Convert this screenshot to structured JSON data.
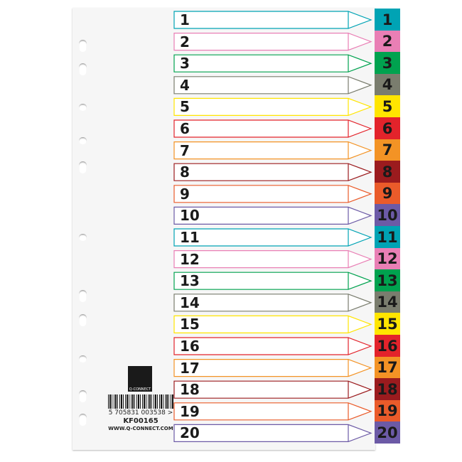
{
  "rows": [
    {
      "n": "1",
      "c": "#00a3b4"
    },
    {
      "n": "2",
      "c": "#e97fb5"
    },
    {
      "n": "3",
      "c": "#00a24f"
    },
    {
      "n": "4",
      "c": "#7a7d6e"
    },
    {
      "n": "5",
      "c": "#ffe500"
    },
    {
      "n": "6",
      "c": "#e3232b"
    },
    {
      "n": "7",
      "c": "#f39325"
    },
    {
      "n": "8",
      "c": "#9b1b1e"
    },
    {
      "n": "9",
      "c": "#ea5b2a"
    },
    {
      "n": "10",
      "c": "#6c5aa6"
    },
    {
      "n": "11",
      "c": "#00a3b4"
    },
    {
      "n": "12",
      "c": "#e97fb5"
    },
    {
      "n": "13",
      "c": "#00a24f"
    },
    {
      "n": "14",
      "c": "#7a7d6e"
    },
    {
      "n": "15",
      "c": "#ffe500"
    },
    {
      "n": "16",
      "c": "#e3232b"
    },
    {
      "n": "17",
      "c": "#f39325"
    },
    {
      "n": "18",
      "c": "#9b1b1e"
    },
    {
      "n": "19",
      "c": "#ea5b2a"
    },
    {
      "n": "20",
      "c": "#6c5aa6"
    }
  ],
  "brand": {
    "logo_text": "Q-CONNECT",
    "barcode": "5 705831 003538 >",
    "code": "KF00165",
    "url": "WWW.Q-CONNECT.COM"
  }
}
